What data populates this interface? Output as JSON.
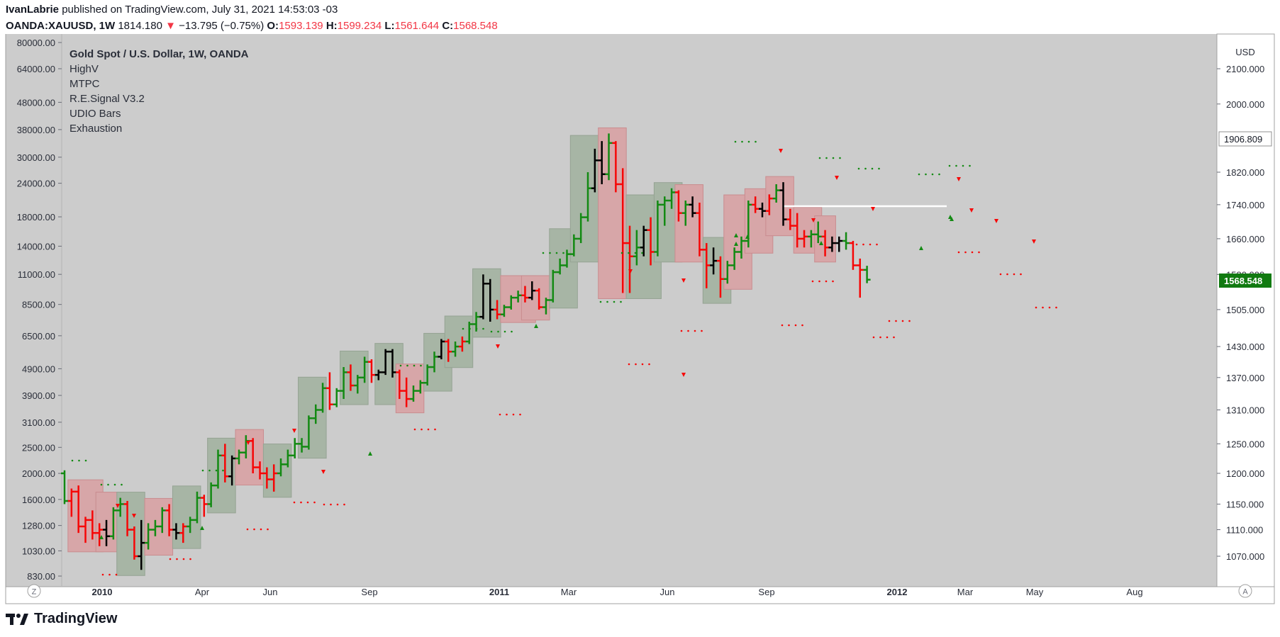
{
  "header": {
    "author": "IvanLabrie",
    "published_text": "published on TradingView.com, July 31, 2021 14:53:03 -03",
    "symbol": "OANDA:XAUUSD, 1W",
    "last_price": "1814.180",
    "change": "−13.795 (−0.75%)",
    "o_label": "O:",
    "o_value": "1593.139",
    "h_label": "H:",
    "h_value": "1599.234",
    "l_label": "L:",
    "l_value": "1561.644",
    "c_label": "C:",
    "c_value": "1568.548"
  },
  "legend": {
    "title": "Gold Spot / U.S. Dollar, 1W, OANDA",
    "indicators": [
      "HighV",
      "MTPC",
      "R.E.Signal V3.2",
      "UDIO Bars",
      "Exhaustion"
    ]
  },
  "right_axis": {
    "unit": "USD",
    "ticks": [
      "2100.000",
      "2000.000",
      "1820.000",
      "1740.000",
      "1660.000",
      "1580.000",
      "1505.000",
      "1430.000",
      "1370.000",
      "1310.000",
      "1250.000",
      "1200.000",
      "1150.000",
      "1110.000",
      "1070.000"
    ],
    "marker_white": "1906.809",
    "marker_green": "1568.548"
  },
  "left_axis": {
    "ticks": [
      "80000.00",
      "64000.00",
      "48000.00",
      "38000.00",
      "30000.00",
      "24000.00",
      "18000.00",
      "14000.00",
      "11000.00",
      "8500.00",
      "6500.00",
      "4900.00",
      "3900.00",
      "3100.00",
      "2500.00",
      "2000.00",
      "1600.00",
      "1280.00",
      "1030.00",
      "830.00"
    ]
  },
  "time_axis": {
    "labels": [
      {
        "text": "2010",
        "bold": true
      },
      {
        "text": "Apr",
        "bold": false
      },
      {
        "text": "Jun",
        "bold": false
      },
      {
        "text": "Sep",
        "bold": false
      },
      {
        "text": "2011",
        "bold": true
      },
      {
        "text": "Mar",
        "bold": false
      },
      {
        "text": "Jun",
        "bold": false
      },
      {
        "text": "Sep",
        "bold": false
      },
      {
        "text": "2012",
        "bold": true
      },
      {
        "text": "Mar",
        "bold": false
      },
      {
        "text": "May",
        "bold": false
      },
      {
        "text": "Aug",
        "bold": false
      }
    ],
    "left_button": "Z",
    "right_button": "A"
  },
  "colors": {
    "up": "#138a13",
    "down": "#f60606",
    "neutral": "#000000",
    "bg": "#cccccc",
    "box_green": "#a7b5a5",
    "box_red": "#d7a6a8"
  },
  "footer": {
    "brand": "TradingView"
  },
  "chart_data": {
    "type": "ohlc",
    "series_name": "OANDA:XAUUSD, 1W",
    "ylabel": "USD",
    "y_scale": "log",
    "right_ylim": [
      1040,
      2175
    ],
    "left_ylim": [
      830,
      80000
    ],
    "bars_right_axis": [
      [
        1200,
        1205,
        1150,
        1155,
        "up"
      ],
      [
        1155,
        1175,
        1130,
        1170,
        "down"
      ],
      [
        1170,
        1180,
        1105,
        1115,
        "down"
      ],
      [
        1115,
        1130,
        1090,
        1125,
        "down"
      ],
      [
        1125,
        1140,
        1095,
        1105,
        "down"
      ],
      [
        1105,
        1120,
        1085,
        1110,
        "down"
      ],
      [
        1110,
        1125,
        1085,
        1100,
        "neutral"
      ],
      [
        1100,
        1145,
        1095,
        1140,
        "up"
      ],
      [
        1140,
        1160,
        1130,
        1150,
        "up"
      ],
      [
        1150,
        1155,
        1100,
        1110,
        "down"
      ],
      [
        1110,
        1115,
        1065,
        1070,
        "down"
      ],
      [
        1070,
        1125,
        1050,
        1090,
        "neutral"
      ],
      [
        1090,
        1120,
        1080,
        1110,
        "up"
      ],
      [
        1110,
        1125,
        1100,
        1115,
        "up"
      ],
      [
        1115,
        1145,
        1105,
        1140,
        "up"
      ],
      [
        1140,
        1150,
        1100,
        1110,
        "down"
      ],
      [
        1110,
        1120,
        1095,
        1105,
        "neutral"
      ],
      [
        1105,
        1120,
        1090,
        1115,
        "down"
      ],
      [
        1115,
        1130,
        1105,
        1125,
        "up"
      ],
      [
        1125,
        1170,
        1120,
        1160,
        "up"
      ],
      [
        1160,
        1165,
        1130,
        1150,
        "down"
      ],
      [
        1150,
        1185,
        1145,
        1180,
        "up"
      ],
      [
        1180,
        1240,
        1175,
        1230,
        "up"
      ],
      [
        1230,
        1250,
        1185,
        1195,
        "down"
      ],
      [
        1195,
        1230,
        1180,
        1225,
        "neutral"
      ],
      [
        1225,
        1240,
        1215,
        1235,
        "up"
      ],
      [
        1235,
        1265,
        1225,
        1255,
        "up"
      ],
      [
        1255,
        1260,
        1200,
        1210,
        "down"
      ],
      [
        1210,
        1220,
        1190,
        1200,
        "down"
      ],
      [
        1200,
        1210,
        1175,
        1190,
        "down"
      ],
      [
        1190,
        1215,
        1170,
        1200,
        "down"
      ],
      [
        1200,
        1225,
        1195,
        1215,
        "up"
      ],
      [
        1215,
        1240,
        1210,
        1230,
        "up"
      ],
      [
        1230,
        1260,
        1225,
        1250,
        "up"
      ],
      [
        1250,
        1260,
        1235,
        1245,
        "up"
      ],
      [
        1245,
        1300,
        1240,
        1295,
        "up"
      ],
      [
        1295,
        1320,
        1285,
        1310,
        "up"
      ],
      [
        1310,
        1360,
        1305,
        1350,
        "up"
      ],
      [
        1350,
        1380,
        1310,
        1320,
        "down"
      ],
      [
        1320,
        1350,
        1315,
        1345,
        "up"
      ],
      [
        1345,
        1390,
        1330,
        1380,
        "up"
      ],
      [
        1380,
        1395,
        1345,
        1355,
        "down"
      ],
      [
        1355,
        1375,
        1340,
        1370,
        "up"
      ],
      [
        1370,
        1410,
        1360,
        1400,
        "up"
      ],
      [
        1400,
        1405,
        1360,
        1375,
        "down"
      ],
      [
        1375,
        1385,
        1365,
        1380,
        "neutral"
      ],
      [
        1380,
        1425,
        1375,
        1420,
        "black"
      ],
      [
        1420,
        1425,
        1370,
        1380,
        "neutral"
      ],
      [
        1380,
        1385,
        1330,
        1345,
        "down"
      ],
      [
        1345,
        1370,
        1315,
        1330,
        "down"
      ],
      [
        1330,
        1355,
        1325,
        1345,
        "up"
      ],
      [
        1345,
        1365,
        1340,
        1360,
        "up"
      ],
      [
        1360,
        1395,
        1355,
        1390,
        "up"
      ],
      [
        1390,
        1420,
        1380,
        1410,
        "up"
      ],
      [
        1410,
        1445,
        1405,
        1440,
        "neutral"
      ],
      [
        1440,
        1445,
        1400,
        1420,
        "down"
      ],
      [
        1420,
        1440,
        1410,
        1430,
        "up"
      ],
      [
        1430,
        1450,
        1420,
        1440,
        "down"
      ],
      [
        1440,
        1480,
        1435,
        1475,
        "up"
      ],
      [
        1475,
        1500,
        1460,
        1490,
        "up"
      ],
      [
        1490,
        1580,
        1485,
        1560,
        "neutral"
      ],
      [
        1560,
        1570,
        1480,
        1505,
        "neutral"
      ],
      [
        1505,
        1525,
        1485,
        1495,
        "down"
      ],
      [
        1495,
        1515,
        1490,
        1510,
        "up"
      ],
      [
        1510,
        1535,
        1505,
        1530,
        "up"
      ],
      [
        1530,
        1545,
        1520,
        1535,
        "up"
      ],
      [
        1535,
        1555,
        1520,
        1530,
        "down"
      ],
      [
        1530,
        1565,
        1525,
        1545,
        "neutral"
      ],
      [
        1545,
        1550,
        1505,
        1510,
        "down"
      ],
      [
        1510,
        1530,
        1495,
        1525,
        "up"
      ],
      [
        1525,
        1590,
        1520,
        1585,
        "up"
      ],
      [
        1585,
        1615,
        1580,
        1600,
        "up"
      ],
      [
        1600,
        1635,
        1595,
        1625,
        "up"
      ],
      [
        1625,
        1670,
        1620,
        1660,
        "up"
      ],
      [
        1660,
        1720,
        1650,
        1710,
        "up"
      ],
      [
        1710,
        1820,
        1700,
        1780,
        "up"
      ],
      [
        1780,
        1880,
        1770,
        1850,
        "neutral"
      ],
      [
        1850,
        1900,
        1790,
        1815,
        "neutral"
      ],
      [
        1815,
        1920,
        1800,
        1895,
        "up"
      ],
      [
        1895,
        1900,
        1770,
        1790,
        "down"
      ],
      [
        1790,
        1830,
        1540,
        1650,
        "down"
      ],
      [
        1650,
        1690,
        1540,
        1620,
        "down"
      ],
      [
        1620,
        1680,
        1600,
        1640,
        "up"
      ],
      [
        1640,
        1690,
        1620,
        1680,
        "neutral"
      ],
      [
        1680,
        1710,
        1600,
        1630,
        "down"
      ],
      [
        1630,
        1750,
        1620,
        1740,
        "up"
      ],
      [
        1740,
        1760,
        1690,
        1750,
        "up"
      ],
      [
        1750,
        1780,
        1730,
        1770,
        "up"
      ],
      [
        1770,
        1775,
        1700,
        1720,
        "down"
      ],
      [
        1720,
        1750,
        1690,
        1740,
        "up"
      ],
      [
        1740,
        1760,
        1710,
        1720,
        "neutral"
      ],
      [
        1720,
        1745,
        1620,
        1635,
        "down"
      ],
      [
        1635,
        1650,
        1550,
        1600,
        "down"
      ],
      [
        1600,
        1640,
        1580,
        1610,
        "neutral"
      ],
      [
        1610,
        1620,
        1530,
        1570,
        "down"
      ],
      [
        1570,
        1610,
        1560,
        1600,
        "up"
      ],
      [
        1600,
        1640,
        1590,
        1630,
        "up"
      ],
      [
        1630,
        1665,
        1615,
        1655,
        "up"
      ],
      [
        1655,
        1750,
        1640,
        1740,
        "up"
      ],
      [
        1740,
        1760,
        1720,
        1730,
        "down"
      ],
      [
        1730,
        1745,
        1710,
        1725,
        "neutral"
      ],
      [
        1725,
        1765,
        1715,
        1755,
        "down"
      ],
      [
        1755,
        1790,
        1745,
        1775,
        "up"
      ],
      [
        1775,
        1795,
        1690,
        1705,
        "neutral"
      ],
      [
        1705,
        1730,
        1680,
        1690,
        "down"
      ],
      [
        1690,
        1720,
        1640,
        1660,
        "down"
      ],
      [
        1660,
        1680,
        1640,
        1665,
        "down"
      ],
      [
        1665,
        1680,
        1640,
        1670,
        "up"
      ],
      [
        1670,
        1700,
        1650,
        1665,
        "up"
      ],
      [
        1665,
        1680,
        1620,
        1640,
        "down"
      ],
      [
        1640,
        1665,
        1630,
        1650,
        "neutral"
      ],
      [
        1650,
        1665,
        1630,
        1655,
        "neutral"
      ],
      [
        1655,
        1675,
        1635,
        1650,
        "up"
      ],
      [
        1650,
        1655,
        1590,
        1600,
        "down"
      ],
      [
        1600,
        1615,
        1530,
        1590,
        "down"
      ],
      [
        1590,
        1599,
        1561,
        1568.548,
        "up"
      ]
    ]
  }
}
